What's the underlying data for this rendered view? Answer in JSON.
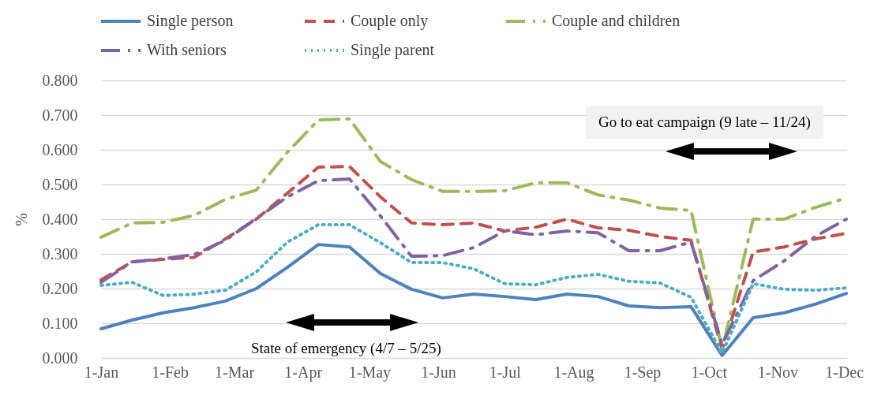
{
  "chart_data": {
    "type": "line",
    "ylabel": "%",
    "x": [
      "--01-01",
      "--01-15",
      "--01-29",
      "--02-12",
      "--02-26",
      "--03-11",
      "--03-25",
      "--04-08",
      "--04-22",
      "--05-06",
      "--05-20",
      "--06-03",
      "--06-17",
      "--07-01",
      "--07-15",
      "--07-29",
      "--08-12",
      "--08-26",
      "--09-09",
      "--09-23",
      "--10-07",
      "--10-21",
      "--11-04",
      "--11-18",
      "--12-02"
    ],
    "xlim": [
      "--01-01",
      "--12-02"
    ],
    "xticks": [
      {
        "value": "--01-01",
        "label": "1-Jan"
      },
      {
        "value": "--02-01",
        "label": "1-Feb"
      },
      {
        "value": "--03-01",
        "label": "1-Mar"
      },
      {
        "value": "--04-01",
        "label": "1-Apr"
      },
      {
        "value": "--05-01",
        "label": "1-May"
      },
      {
        "value": "--06-01",
        "label": "1-Jun"
      },
      {
        "value": "--07-01",
        "label": "1-Jul"
      },
      {
        "value": "--08-01",
        "label": "1-Aug"
      },
      {
        "value": "--09-01",
        "label": "1-Sep"
      },
      {
        "value": "--10-01",
        "label": "1-Oct"
      },
      {
        "value": "--11-01",
        "label": "1-Nov"
      },
      {
        "value": "--12-01",
        "label": "1-Dec"
      }
    ],
    "ylim": [
      0,
      0.8
    ],
    "yticks": [
      {
        "value": 0,
        "label": "0.000"
      },
      {
        "value": 0.1,
        "label": "0.100"
      },
      {
        "value": 0.2,
        "label": "0.200"
      },
      {
        "value": 0.3,
        "label": "0.300"
      },
      {
        "value": 0.4,
        "label": "0.400"
      },
      {
        "value": 0.5,
        "label": "0.500"
      },
      {
        "value": 0.6,
        "label": "0.600"
      },
      {
        "value": 0.7,
        "label": "0.700"
      },
      {
        "value": 0.8,
        "label": "0.800"
      }
    ],
    "grid": "y",
    "legend": "top",
    "marker": "none",
    "series": [
      {
        "name": "Single person",
        "color": "#4f81bd",
        "line_style": "solid",
        "values": [
          0.084,
          0.109,
          0.13,
          0.145,
          0.164,
          0.2,
          0.261,
          0.327,
          0.32,
          0.243,
          0.198,
          0.173,
          0.184,
          0.177,
          0.168,
          0.184,
          0.177,
          0.15,
          0.145,
          0.148,
          0.007,
          0.116,
          0.13,
          0.155,
          0.186
        ]
      },
      {
        "name": "Couple only",
        "color": "#c0504d",
        "line_style": "dashed",
        "values": [
          0.225,
          0.277,
          0.284,
          0.29,
          0.343,
          0.4,
          0.475,
          0.55,
          0.552,
          0.464,
          0.389,
          0.384,
          0.389,
          0.366,
          0.377,
          0.4,
          0.375,
          0.368,
          0.35,
          0.339,
          0.025,
          0.305,
          0.32,
          0.343,
          0.359
        ]
      },
      {
        "name": "Couple and children",
        "color": "#9bbb59",
        "line_style": "dashdot",
        "values": [
          0.348,
          0.389,
          0.391,
          0.411,
          0.457,
          0.484,
          0.593,
          0.686,
          0.689,
          0.566,
          0.514,
          0.48,
          0.48,
          0.482,
          0.505,
          0.505,
          0.47,
          0.455,
          0.432,
          0.425,
          0.025,
          0.4,
          0.4,
          0.434,
          0.461
        ]
      },
      {
        "name": "With seniors",
        "color": "#8064a2",
        "line_style": "dashdot",
        "values": [
          0.218,
          0.277,
          0.286,
          0.298,
          0.339,
          0.402,
          0.464,
          0.511,
          0.516,
          0.409,
          0.293,
          0.295,
          0.318,
          0.366,
          0.355,
          0.366,
          0.361,
          0.309,
          0.309,
          0.334,
          0.039,
          0.223,
          0.28,
          0.35,
          0.4
        ]
      },
      {
        "name": "Single parent",
        "color": "#4bacc6",
        "line_style": "dotted",
        "values": [
          0.209,
          0.218,
          0.18,
          0.184,
          0.195,
          0.248,
          0.334,
          0.384,
          0.384,
          0.332,
          0.275,
          0.275,
          0.257,
          0.214,
          0.211,
          0.232,
          0.241,
          0.221,
          0.216,
          0.175,
          0.014,
          0.214,
          0.198,
          0.195,
          0.202
        ]
      }
    ],
    "annotations": [
      "State of emergency (4/7 – 5/25)",
      "Go to eat campaign (9 late – 11/24)"
    ]
  }
}
